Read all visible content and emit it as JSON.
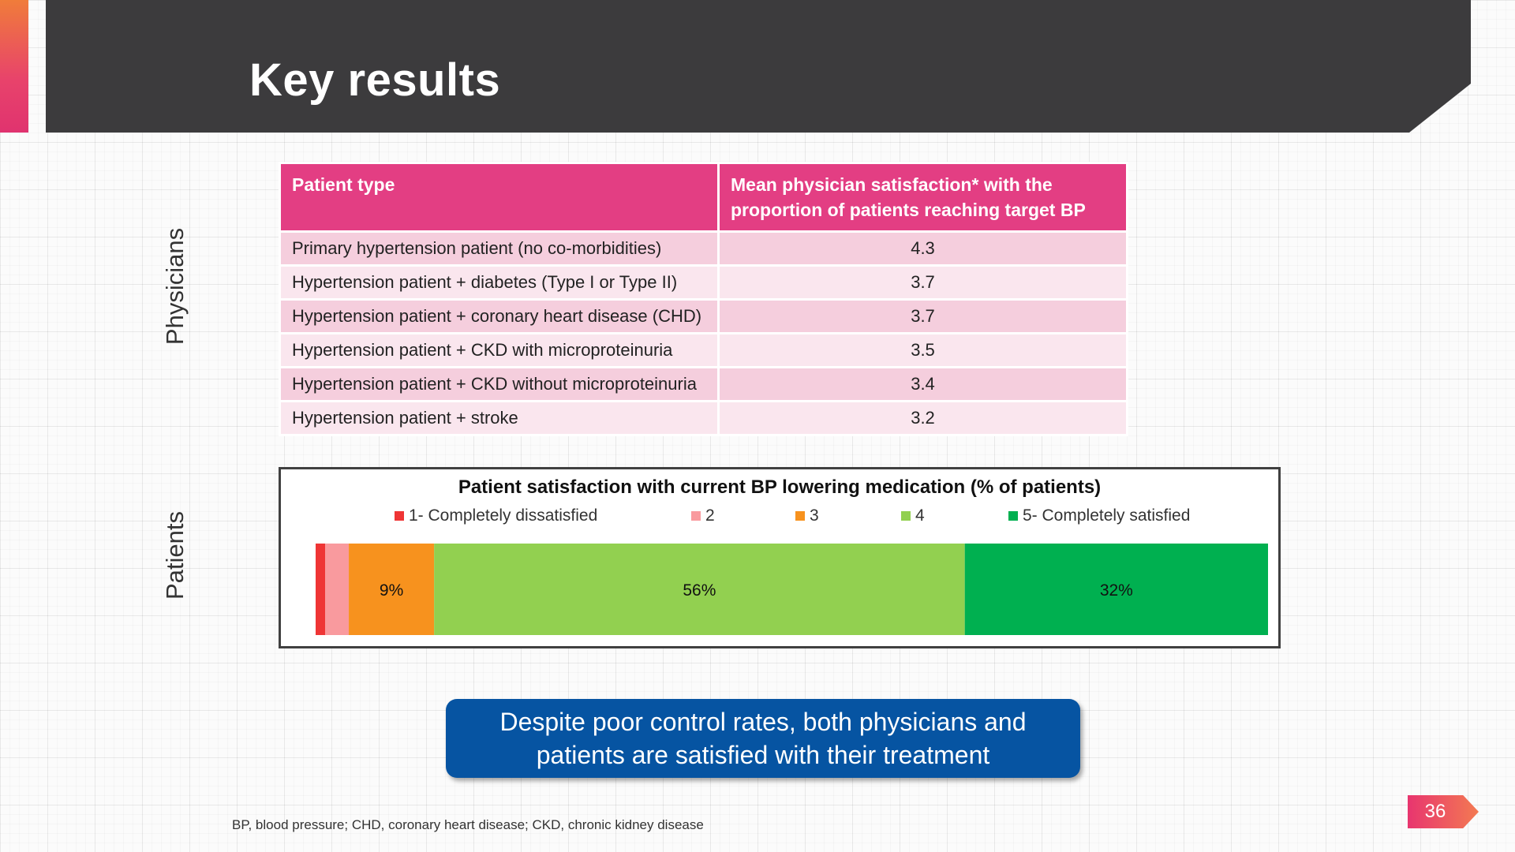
{
  "slide": {
    "title": "Key results",
    "side_labels": {
      "physicians": "Physicians",
      "patients": "Patients"
    },
    "footnote": "BP, blood pressure; CHD, coronary heart disease; CKD, chronic kidney disease",
    "page_number": "36",
    "callout": "Despite poor control rates, both physicians and patients are satisfied with their treatment",
    "colors": {
      "header": "#3c3b3d",
      "table_header": "#e33e83",
      "callout": "#0654a2"
    }
  },
  "table": {
    "headers": [
      "Patient type",
      "Mean physician satisfaction* with the proportion of patients reaching target BP"
    ],
    "rows": [
      [
        "Primary hypertension patient (no co-morbidities)",
        "4.3"
      ],
      [
        "Hypertension patient + diabetes (Type I or Type II)",
        "3.7"
      ],
      [
        "Hypertension patient + coronary heart disease (CHD)",
        "3.7"
      ],
      [
        "Hypertension patient + CKD with microproteinuria",
        "3.5"
      ],
      [
        "Hypertension patient + CKD without microproteinuria",
        "3.4"
      ],
      [
        "Hypertension patient + stroke",
        "3.2"
      ]
    ]
  },
  "chart_data": {
    "type": "bar",
    "orientation": "horizontal-stacked",
    "title": "Patient satisfaction with current BP lowering medication (% of patients)",
    "legend_position": "top",
    "series": [
      {
        "name": "1- Completely dissatisfied",
        "value": 1,
        "label": "",
        "color": "#ef3535"
      },
      {
        "name": "2",
        "value": 2.5,
        "label": "",
        "color": "#f99a9e"
      },
      {
        "name": "3",
        "value": 9,
        "label": "9%",
        "color": "#f7921e"
      },
      {
        "name": "4",
        "value": 56,
        "label": "56%",
        "color": "#92d050"
      },
      {
        "name": "5- Completely satisfied",
        "value": 32,
        "label": "32%",
        "color": "#00b050"
      }
    ]
  }
}
